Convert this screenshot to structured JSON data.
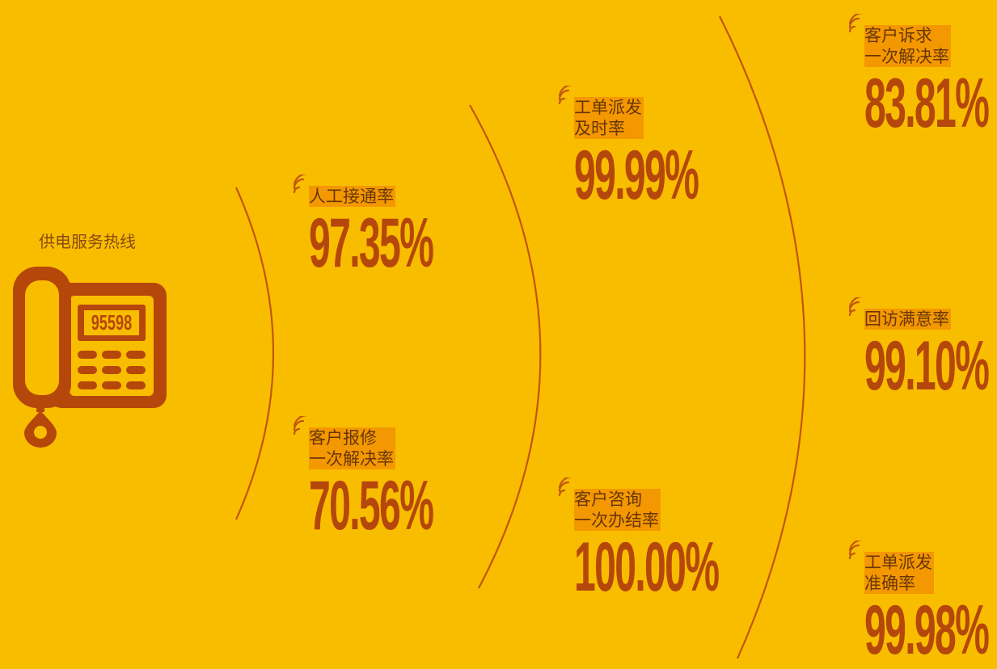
{
  "hotline": {
    "title": "供电服务热线",
    "number": "95598"
  },
  "metrics": [
    {
      "label": [
        "人工接通率"
      ],
      "value": "97.35%"
    },
    {
      "label": [
        "客户报修",
        "一次解决率"
      ],
      "value": "70.56%"
    },
    {
      "label": [
        "工单派发",
        "及时率"
      ],
      "value": "99.99%"
    },
    {
      "label": [
        "客户咨询",
        "一次办结率"
      ],
      "value": "100.00%"
    },
    {
      "label": [
        "客户诉求",
        "一次解决率"
      ],
      "value": "83.81%"
    },
    {
      "label": [
        "回访满意率"
      ],
      "value": "99.10%"
    },
    {
      "label": [
        "工单派发",
        "准确率"
      ],
      "value": "99.98%"
    }
  ]
}
